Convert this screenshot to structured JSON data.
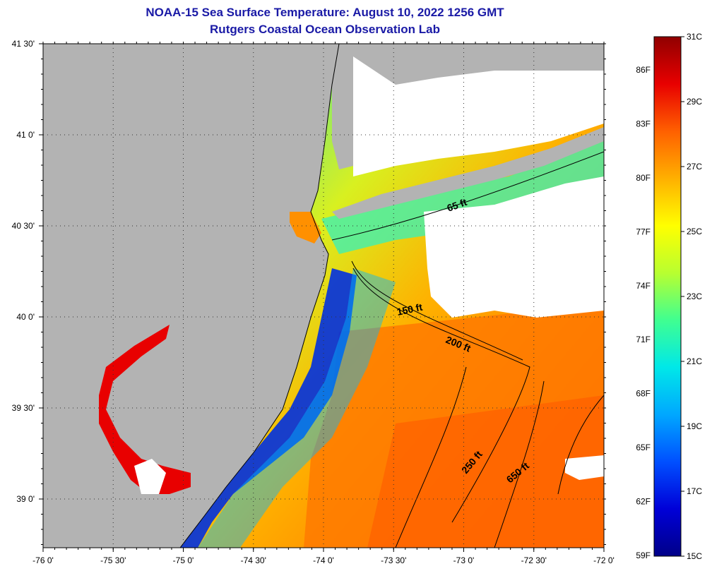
{
  "title": {
    "line1": "NOAA-15 Sea Surface Temperature:  August 10, 2022 1256 GMT",
    "line2": "Rutgers Coastal Ocean Observation Lab"
  },
  "map": {
    "lat_labels": [
      "41 30'",
      "41 0'",
      "40 30'",
      "40 0'",
      "39 30'",
      "39 0'"
    ],
    "lon_labels": [
      "-76 0'",
      "-75 30'",
      "-75 0'",
      "-74 30'",
      "-74 0'",
      "-73 30'",
      "-73 0'",
      "-72 30'",
      "-72 0'"
    ],
    "depth_contours": [
      "65 ft",
      "150 ft",
      "200 ft",
      "250 ft",
      "650 ft"
    ],
    "colors": {
      "land": "#b3b3b3",
      "cloud": "#ffffff",
      "coast": "#000000"
    }
  },
  "colorbar": {
    "celsius_labels": [
      "31C",
      "29C",
      "27C",
      "25C",
      "23C",
      "21C",
      "19C",
      "17C",
      "15C"
    ],
    "fahrenheit_labels": [
      "86F",
      "83F",
      "80F",
      "77F",
      "74F",
      "71F",
      "68F",
      "65F",
      "62F",
      "59F"
    ],
    "gradient_colors": [
      "#000088",
      "#0000d8",
      "#0050ff",
      "#00a8ff",
      "#00e8e8",
      "#40ff90",
      "#b8ff30",
      "#ffff00",
      "#ffb000",
      "#ff6000",
      "#e80000",
      "#900000"
    ]
  }
}
